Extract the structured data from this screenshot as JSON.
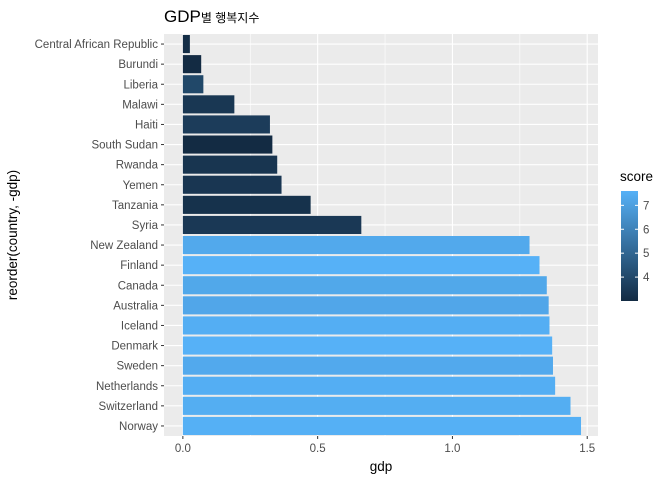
{
  "chart_data": {
    "type": "bar",
    "orientation": "horizontal",
    "title": "GDP",
    "title_suffix": "별 행복지수",
    "xlabel": "gdp",
    "ylabel": "reorder(country, -gdp)",
    "xlim": [
      -0.07,
      1.54
    ],
    "xticks": [
      0.0,
      0.5,
      1.0,
      1.5
    ],
    "xtick_labels": [
      "0.0",
      "0.5",
      "1.0",
      "1.5"
    ],
    "grid": true,
    "legend_position": "right",
    "legend": {
      "title": "score",
      "range": [
        3.0,
        7.6
      ],
      "ticks": [
        4,
        5,
        6,
        7
      ],
      "tick_labels": [
        "4",
        "5",
        "6",
        "7"
      ],
      "color_low": "#132B43",
      "color_high": "#56B1F7"
    },
    "bars": [
      {
        "country": "Central African Republic",
        "gdp": 0.026,
        "score": 3.08
      },
      {
        "country": "Burundi",
        "gdp": 0.068,
        "score": 2.91
      },
      {
        "country": "Liberia",
        "gdp": 0.076,
        "score": 3.98
      },
      {
        "country": "Malawi",
        "gdp": 0.191,
        "score": 3.41
      },
      {
        "country": "Haiti",
        "gdp": 0.323,
        "score": 3.6
      },
      {
        "country": "South Sudan",
        "gdp": 0.332,
        "score": 2.85
      },
      {
        "country": "Rwanda",
        "gdp": 0.35,
        "score": 3.33
      },
      {
        "country": "Yemen",
        "gdp": 0.366,
        "score": 3.38
      },
      {
        "country": "Tanzania",
        "gdp": 0.474,
        "score": 3.23
      },
      {
        "country": "Syria",
        "gdp": 0.662,
        "score": 3.46
      },
      {
        "country": "New Zealand",
        "gdp": 1.286,
        "score": 7.31
      },
      {
        "country": "Finland",
        "gdp": 1.323,
        "score": 7.77
      },
      {
        "country": "Canada",
        "gdp": 1.35,
        "score": 7.28
      },
      {
        "country": "Australia",
        "gdp": 1.357,
        "score": 7.23
      },
      {
        "country": "Iceland",
        "gdp": 1.36,
        "score": 7.49
      },
      {
        "country": "Denmark",
        "gdp": 1.37,
        "score": 7.6
      },
      {
        "country": "Sweden",
        "gdp": 1.373,
        "score": 7.34
      },
      {
        "country": "Netherlands",
        "gdp": 1.381,
        "score": 7.49
      },
      {
        "country": "Switzerland",
        "gdp": 1.438,
        "score": 7.48
      },
      {
        "country": "Norway",
        "gdp": 1.477,
        "score": 7.55
      }
    ]
  }
}
